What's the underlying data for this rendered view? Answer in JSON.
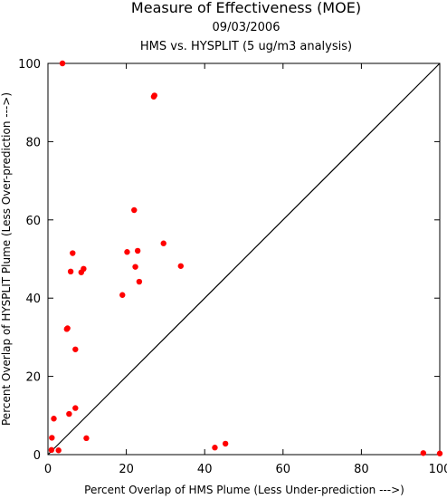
{
  "chart_data": {
    "type": "scatter",
    "title": "Measure of Effectiveness (MOE)",
    "subtitle_date": "09/03/2006",
    "subtitle_analysis": "HMS vs. HYSPLIT  (5 ug/m3 analysis)",
    "xlabel": "Percent Overlap of HMS Plume (Less Under-prediction --->)",
    "ylabel": "Percent Overlap of HYSPLIT Plume (Less Over-prediction --->)",
    "xlim": [
      0,
      100
    ],
    "ylim": [
      0,
      100
    ],
    "xticks": [
      0,
      20,
      40,
      60,
      80,
      100
    ],
    "yticks": [
      0,
      20,
      40,
      60,
      80,
      100
    ],
    "grid": false,
    "reference_line": {
      "from": [
        0,
        0
      ],
      "to": [
        100,
        100
      ]
    },
    "marker_color": "#ff0000",
    "line_color": "#000000",
    "points": [
      {
        "x": 3.7,
        "y": 100.0
      },
      {
        "x": 27.0,
        "y": 91.5
      },
      {
        "x": 27.2,
        "y": 91.8
      },
      {
        "x": 22.0,
        "y": 62.5
      },
      {
        "x": 29.5,
        "y": 54.0
      },
      {
        "x": 6.3,
        "y": 51.5
      },
      {
        "x": 20.2,
        "y": 51.8
      },
      {
        "x": 22.9,
        "y": 52.1
      },
      {
        "x": 33.9,
        "y": 48.2
      },
      {
        "x": 22.3,
        "y": 48.0
      },
      {
        "x": 9.1,
        "y": 47.5
      },
      {
        "x": 5.8,
        "y": 46.8
      },
      {
        "x": 8.5,
        "y": 46.6
      },
      {
        "x": 23.3,
        "y": 44.2
      },
      {
        "x": 19.0,
        "y": 40.8
      },
      {
        "x": 4.8,
        "y": 32.1
      },
      {
        "x": 5.0,
        "y": 32.3
      },
      {
        "x": 7.0,
        "y": 26.9
      },
      {
        "x": 7.0,
        "y": 11.9
      },
      {
        "x": 5.4,
        "y": 10.4
      },
      {
        "x": 1.5,
        "y": 9.2
      },
      {
        "x": 1.0,
        "y": 4.3
      },
      {
        "x": 9.8,
        "y": 4.2
      },
      {
        "x": 45.3,
        "y": 2.8
      },
      {
        "x": 42.6,
        "y": 1.8
      },
      {
        "x": 0.9,
        "y": 1.2
      },
      {
        "x": 2.7,
        "y": 1.1
      },
      {
        "x": 95.8,
        "y": 0.4
      },
      {
        "x": 100.0,
        "y": 0.3
      }
    ]
  }
}
